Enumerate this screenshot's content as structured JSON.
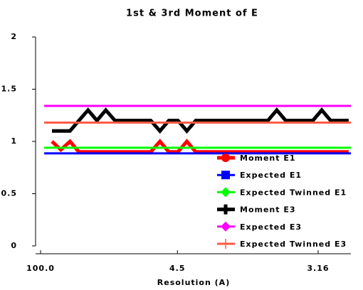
{
  "chart_data": {
    "type": "line",
    "title": "1st & 3rd Moment of E",
    "xlabel": "Resolution (A)",
    "xlim": [
      -0.0017,
      0.1119
    ],
    "xticks": [
      {
        "value": 0.0001,
        "label": "100.0"
      },
      {
        "value": 0.0494,
        "label": "4.5"
      },
      {
        "value": 0.1001,
        "label": "3.16"
      }
    ],
    "ylim": [
      0,
      2
    ],
    "yticks": [
      0,
      0.5,
      1,
      1.5,
      2
    ],
    "legend": "lower right",
    "x": [
      0.0042,
      0.0074,
      0.0107,
      0.0139,
      0.0172,
      0.0204,
      0.0236,
      0.0269,
      0.0301,
      0.0334,
      0.0366,
      0.0398,
      0.0431,
      0.0463,
      0.0496,
      0.0528,
      0.056,
      0.0593,
      0.0625,
      0.0658,
      0.069,
      0.0722,
      0.0755,
      0.0787,
      0.082,
      0.0852,
      0.0884,
      0.0917,
      0.0949,
      0.0982,
      0.1014,
      0.1046,
      0.1079,
      0.1111
    ],
    "series": [
      {
        "name": "Moment E1",
        "color": "#ff0000",
        "marker": "circle",
        "values": [
          1.0,
          0.92,
          1.0,
          0.9,
          0.9,
          0.9,
          0.9,
          0.9,
          0.9,
          0.9,
          0.9,
          0.9,
          1.0,
          0.9,
          0.9,
          1.0,
          0.9,
          0.9,
          0.9,
          0.9,
          0.9,
          0.9,
          0.9,
          0.9,
          0.9,
          0.9,
          0.9,
          0.9,
          0.9,
          0.9,
          0.9,
          0.9,
          0.9,
          0.9
        ]
      },
      {
        "name": "Expected E1",
        "color": "#0000ff",
        "marker": "square",
        "x": [
          0.0014,
          0.1119
        ],
        "values": [
          0.886,
          0.886
        ]
      },
      {
        "name": "Expected Twinned E1",
        "color": "#00ff00",
        "marker": "diamond",
        "x": [
          0.0014,
          0.1119
        ],
        "values": [
          0.94,
          0.94
        ]
      },
      {
        "name": "Moment E3",
        "color": "#000000",
        "marker": "plus",
        "values": [
          1.1,
          1.1,
          1.1,
          1.2,
          1.3,
          1.2,
          1.3,
          1.2,
          1.2,
          1.2,
          1.2,
          1.2,
          1.1,
          1.2,
          1.2,
          1.1,
          1.2,
          1.2,
          1.2,
          1.2,
          1.2,
          1.2,
          1.2,
          1.2,
          1.2,
          1.3,
          1.2,
          1.2,
          1.2,
          1.2,
          1.3,
          1.2,
          1.2,
          1.2
        ]
      },
      {
        "name": "Expected E3",
        "color": "#ff00ff",
        "marker": "diamond",
        "x": [
          0.0014,
          0.1119
        ],
        "values": [
          1.34,
          1.34
        ]
      },
      {
        "name": "Expected Twinned E3",
        "color": "#ff5a46",
        "marker": "cross",
        "x": [
          0.0014,
          0.1119
        ],
        "values": [
          1.18,
          1.18
        ]
      }
    ]
  }
}
